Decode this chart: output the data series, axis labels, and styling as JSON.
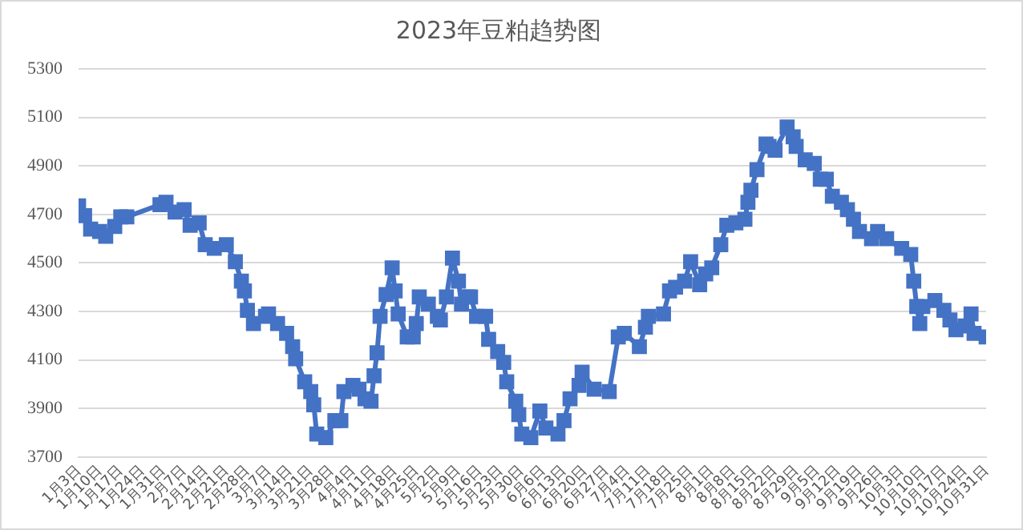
{
  "chart_data": {
    "type": "line",
    "title": "2023年豆粕趋势图",
    "color": "#4472c4",
    "marker": "square",
    "grid": "y",
    "x": [
      "2023-01-03",
      "2023-01-05",
      "2023-01-07",
      "2023-01-10",
      "2023-01-12",
      "2023-01-15",
      "2023-01-17",
      "2023-01-19",
      "2023-01-30",
      "2023-02-01",
      "2023-02-04",
      "2023-02-07",
      "2023-02-09",
      "2023-02-12",
      "2023-02-14",
      "2023-02-17",
      "2023-02-21",
      "2023-02-24",
      "2023-02-26",
      "2023-02-27",
      "2023-02-28",
      "2023-03-02",
      "2023-03-06",
      "2023-03-07",
      "2023-03-10",
      "2023-03-13",
      "2023-03-15",
      "2023-03-16",
      "2023-03-19",
      "2023-03-21",
      "2023-03-22",
      "2023-03-23",
      "2023-03-26",
      "2023-03-29",
      "2023-03-31",
      "2023-04-01",
      "2023-04-04",
      "2023-04-06",
      "2023-04-08",
      "2023-04-10",
      "2023-04-11",
      "2023-04-12",
      "2023-04-13",
      "2023-04-15",
      "2023-04-17",
      "2023-04-18",
      "2023-04-19",
      "2023-04-22",
      "2023-04-24",
      "2023-04-25",
      "2023-04-26",
      "2023-04-29",
      "2023-05-02",
      "2023-05-03",
      "2023-05-05",
      "2023-05-07",
      "2023-05-09",
      "2023-05-10",
      "2023-05-12",
      "2023-05-13",
      "2023-05-15",
      "2023-05-18",
      "2023-05-19",
      "2023-05-22",
      "2023-05-24",
      "2023-05-25",
      "2023-05-28",
      "2023-05-29",
      "2023-05-30",
      "2023-06-02",
      "2023-06-05",
      "2023-06-07",
      "2023-06-11",
      "2023-06-13",
      "2023-06-15",
      "2023-06-18",
      "2023-06-19",
      "2023-06-23",
      "2023-06-28",
      "2023-07-01",
      "2023-07-03",
      "2023-07-08",
      "2023-07-10",
      "2023-07-11",
      "2023-07-16",
      "2023-07-18",
      "2023-07-20",
      "2023-07-23",
      "2023-07-25",
      "2023-07-28",
      "2023-07-30",
      "2023-08-01",
      "2023-08-04",
      "2023-08-06",
      "2023-08-09",
      "2023-08-12",
      "2023-08-13",
      "2023-08-14",
      "2023-08-16",
      "2023-08-19",
      "2023-08-20",
      "2023-08-22",
      "2023-08-26",
      "2023-08-28",
      "2023-08-29",
      "2023-09-01",
      "2023-09-04",
      "2023-09-06",
      "2023-09-08",
      "2023-09-10",
      "2023-09-13",
      "2023-09-15",
      "2023-09-17",
      "2023-09-19",
      "2023-09-23",
      "2023-09-25",
      "2023-09-28",
      "2023-10-03",
      "2023-10-06",
      "2023-10-07",
      "2023-10-08",
      "2023-10-09",
      "2023-10-10",
      "2023-10-14",
      "2023-10-17",
      "2023-10-19",
      "2023-10-21",
      "2023-10-24",
      "2023-10-26",
      "2023-10-27",
      "2023-10-31"
    ],
    "values": [
      4735,
      4695,
      4640,
      4630,
      4610,
      4650,
      4690,
      4690,
      4740,
      4750,
      4710,
      4720,
      4655,
      4665,
      4575,
      4560,
      4575,
      4505,
      4425,
      4385,
      4305,
      4250,
      4280,
      4290,
      4250,
      4210,
      4155,
      4105,
      4010,
      3970,
      3915,
      3795,
      3780,
      3850,
      3850,
      3970,
      3995,
      3980,
      3940,
      3930,
      4035,
      4130,
      4280,
      4370,
      4480,
      4385,
      4290,
      4195,
      4195,
      4250,
      4360,
      4330,
      4280,
      4265,
      4360,
      4520,
      4425,
      4330,
      4360,
      4360,
      4280,
      4280,
      4185,
      4135,
      4090,
      4010,
      3930,
      3875,
      3795,
      3780,
      3890,
      3820,
      3795,
      3850,
      3940,
      3995,
      4050,
      3980,
      3970,
      4195,
      4210,
      4155,
      4235,
      4280,
      4290,
      4385,
      4400,
      4425,
      4505,
      4410,
      4455,
      4480,
      4575,
      4655,
      4665,
      4680,
      4750,
      4800,
      4885,
      4990,
      4980,
      4965,
      5060,
      5020,
      4980,
      4925,
      4910,
      4845,
      4845,
      4775,
      4750,
      4720,
      4680,
      4630,
      4600,
      4630,
      4600,
      4560,
      4535,
      4425,
      4320,
      4250,
      4320,
      4345,
      4305,
      4265,
      4225,
      4240,
      4290,
      4210,
      4195
    ],
    "xlim": [
      "2023-01-03",
      "2023-10-31"
    ],
    "xticks": [
      {
        "value": "2023-01-03",
        "label": "1月3日"
      },
      {
        "value": "2023-01-10",
        "label": "1月10日"
      },
      {
        "value": "2023-01-17",
        "label": "1月17日"
      },
      {
        "value": "2023-01-24",
        "label": "1月24日"
      },
      {
        "value": "2023-01-31",
        "label": "1月31日"
      },
      {
        "value": "2023-02-07",
        "label": "2月7日"
      },
      {
        "value": "2023-02-14",
        "label": "2月14日"
      },
      {
        "value": "2023-02-21",
        "label": "2月21日"
      },
      {
        "value": "2023-02-28",
        "label": "2月28日"
      },
      {
        "value": "2023-03-07",
        "label": "3月7日"
      },
      {
        "value": "2023-03-14",
        "label": "3月14日"
      },
      {
        "value": "2023-03-21",
        "label": "3月21日"
      },
      {
        "value": "2023-03-28",
        "label": "3月28日"
      },
      {
        "value": "2023-04-04",
        "label": "4月4日"
      },
      {
        "value": "2023-04-11",
        "label": "4月11日"
      },
      {
        "value": "2023-04-18",
        "label": "4月18日"
      },
      {
        "value": "2023-04-25",
        "label": "4月25日"
      },
      {
        "value": "2023-05-02",
        "label": "5月2日"
      },
      {
        "value": "2023-05-09",
        "label": "5月9日"
      },
      {
        "value": "2023-05-16",
        "label": "5月16日"
      },
      {
        "value": "2023-05-23",
        "label": "5月23日"
      },
      {
        "value": "2023-05-30",
        "label": "5月30日"
      },
      {
        "value": "2023-06-06",
        "label": "6月6日"
      },
      {
        "value": "2023-06-13",
        "label": "6月13日"
      },
      {
        "value": "2023-06-20",
        "label": "6月20日"
      },
      {
        "value": "2023-06-27",
        "label": "6月27日"
      },
      {
        "value": "2023-07-04",
        "label": "7月4日"
      },
      {
        "value": "2023-07-11",
        "label": "7月11日"
      },
      {
        "value": "2023-07-18",
        "label": "7月18日"
      },
      {
        "value": "2023-07-25",
        "label": "7月25日"
      },
      {
        "value": "2023-08-01",
        "label": "8月1日"
      },
      {
        "value": "2023-08-08",
        "label": "8月8日"
      },
      {
        "value": "2023-08-15",
        "label": "8月15日"
      },
      {
        "value": "2023-08-22",
        "label": "8月22日"
      },
      {
        "value": "2023-08-29",
        "label": "8月29日"
      },
      {
        "value": "2023-09-05",
        "label": "9月5日"
      },
      {
        "value": "2023-09-12",
        "label": "9月12日"
      },
      {
        "value": "2023-09-19",
        "label": "9月19日"
      },
      {
        "value": "2023-09-26",
        "label": "9月26日"
      },
      {
        "value": "2023-10-03",
        "label": "10月3日"
      },
      {
        "value": "2023-10-10",
        "label": "10月10日"
      },
      {
        "value": "2023-10-17",
        "label": "10月17日"
      },
      {
        "value": "2023-10-24",
        "label": "10月24日"
      },
      {
        "value": "2023-10-31",
        "label": "10月31日"
      }
    ],
    "ylim": [
      3700,
      5300
    ],
    "yticks": [
      3700,
      3900,
      4100,
      4300,
      4500,
      4700,
      4900,
      5100,
      5300
    ]
  }
}
